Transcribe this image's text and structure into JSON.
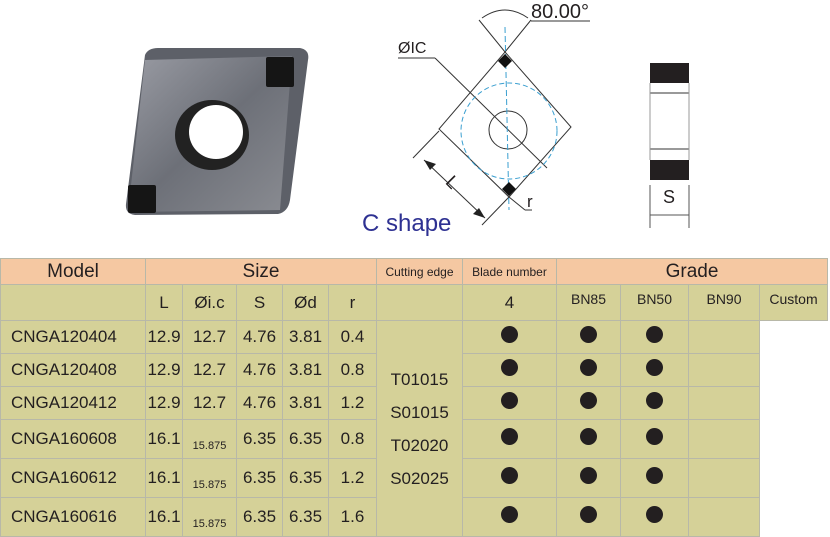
{
  "diagram": {
    "angle_label": "80.00°",
    "ic_label": "ØIC",
    "l_label": "L",
    "r_label": "r",
    "s_label": "S",
    "shape_label": "C shape"
  },
  "table": {
    "headers": {
      "model": "Model",
      "size": "Size",
      "cutting_edge": "Cutting edge",
      "blade_number": "Blade number",
      "grade": "Grade"
    },
    "size_columns": [
      "L",
      "Øi.c",
      "S",
      "Ød",
      "r"
    ],
    "grade_columns": [
      "BN85",
      "BN50",
      "BN90",
      "Custom"
    ],
    "rows": [
      {
        "model": "CNGA120404",
        "L": "12.9",
        "ic": "12.7",
        "S": "4.76",
        "d": "3.81",
        "r": "0.4",
        "grades": [
          true,
          true,
          true,
          false
        ]
      },
      {
        "model": "CNGA120408",
        "L": "12.9",
        "ic": "12.7",
        "S": "4.76",
        "d": "3.81",
        "r": "0.8",
        "grades": [
          true,
          true,
          true,
          false
        ]
      },
      {
        "model": "CNGA120412",
        "L": "12.9",
        "ic": "12.7",
        "S": "4.76",
        "d": "3.81",
        "r": "1.2",
        "grades": [
          true,
          true,
          true,
          false
        ]
      },
      {
        "model": "CNGA160608",
        "L": "16.1",
        "ic": "15.875",
        "S": "6.35",
        "d": "6.35",
        "r": "0.8",
        "grades": [
          true,
          true,
          true,
          false
        ]
      },
      {
        "model": "CNGA160612",
        "L": "16.1",
        "ic": "15.875",
        "S": "6.35",
        "d": "6.35",
        "r": "1.2",
        "grades": [
          true,
          true,
          true,
          false
        ]
      },
      {
        "model": "CNGA160616",
        "L": "16.1",
        "ic": "15.875",
        "S": "6.35",
        "d": "6.35",
        "r": "1.6",
        "grades": [
          true,
          true,
          true,
          false
        ]
      }
    ],
    "cutting_edges": [
      "T01015",
      "S01015",
      "T02020",
      "S02025"
    ],
    "blade_number": "4"
  },
  "colors": {
    "header": "#f5c8a2",
    "body": "#d5d198",
    "diagram_dash": "#3a9fd0",
    "shape_label": "#2e3192"
  }
}
